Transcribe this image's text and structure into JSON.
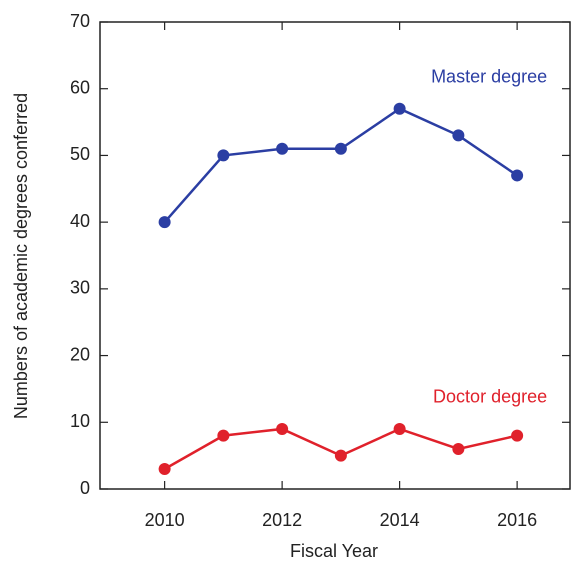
{
  "chart_data": {
    "type": "line",
    "x": [
      2010,
      2011,
      2012,
      2013,
      2014,
      2015,
      2016
    ],
    "series": [
      {
        "name": "Master degree",
        "color": "#2b3ea3",
        "values": [
          40,
          50,
          51,
          51,
          57,
          53,
          47
        ]
      },
      {
        "name": "Doctor degree",
        "color": "#e0212b",
        "values": [
          3,
          8,
          9,
          5,
          9,
          6,
          8
        ]
      }
    ],
    "xlabel": "Fiscal Year",
    "ylabel": "Numbers of academic degrees conferred",
    "xlim": [
      2008.9,
      2016.9
    ],
    "xticks": [
      2010,
      2012,
      2014,
      2016
    ],
    "ylim": [
      0,
      70
    ],
    "yticks": [
      0,
      10,
      20,
      30,
      40,
      50,
      60,
      70
    ]
  }
}
